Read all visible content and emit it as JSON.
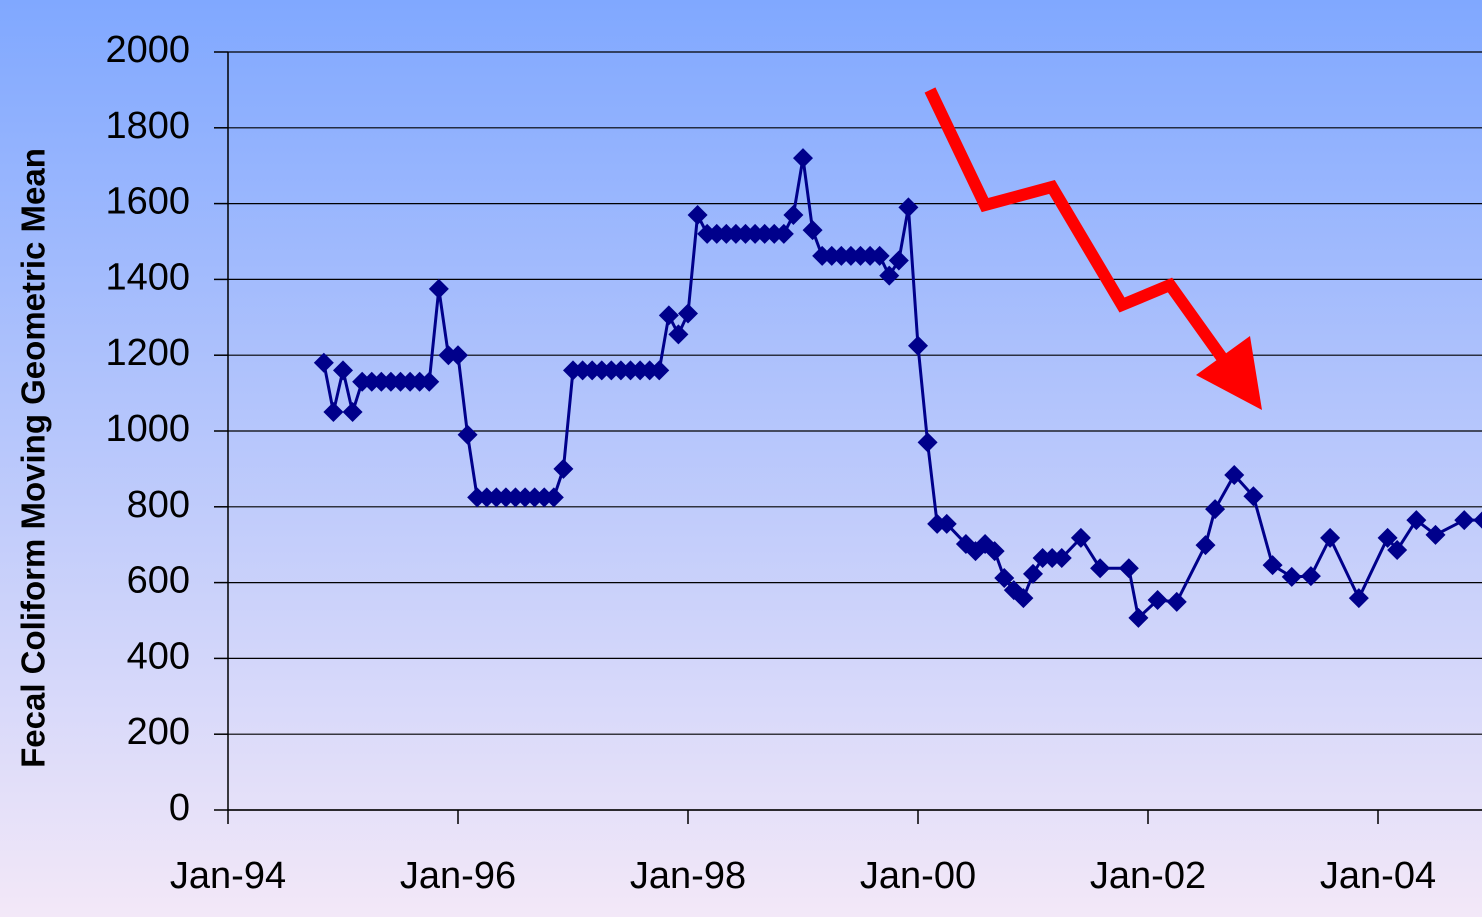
{
  "chart_data": {
    "type": "line",
    "ylabel": "Fecal Coliform Moving Geometric Mean",
    "xlim": [
      "1994-01",
      "2005-01"
    ],
    "xticks": [
      {
        "value": "1994-01",
        "label": "Jan-94"
      },
      {
        "value": "1996-01",
        "label": "Jan-96"
      },
      {
        "value": "1998-01",
        "label": "Jan-98"
      },
      {
        "value": "2000-01",
        "label": "Jan-00"
      },
      {
        "value": "2002-01",
        "label": "Jan-02"
      },
      {
        "value": "2004-01",
        "label": "Jan-04"
      }
    ],
    "ylim": [
      0,
      2000
    ],
    "yticks": [
      0,
      200,
      400,
      600,
      800,
      1000,
      1200,
      1400,
      1600,
      1800,
      2000
    ],
    "grid": true,
    "series": [
      {
        "color": "#00008b",
        "x": [
          "1994-11",
          "1994-12",
          "1995-01",
          "1995-02",
          "1995-03",
          "1995-04",
          "1995-05",
          "1995-06",
          "1995-07",
          "1995-08",
          "1995-09",
          "1995-10",
          "1995-11",
          "1995-12",
          "1996-01",
          "1996-02",
          "1996-03",
          "1996-04",
          "1996-05",
          "1996-06",
          "1996-07",
          "1996-08",
          "1996-09",
          "1996-10",
          "1996-11",
          "1996-12",
          "1997-01",
          "1997-02",
          "1997-03",
          "1997-04",
          "1997-05",
          "1997-06",
          "1997-07",
          "1997-08",
          "1997-09",
          "1997-10",
          "1997-11",
          "1997-12",
          "1998-01",
          "1998-02",
          "1998-03",
          "1998-04",
          "1998-05",
          "1998-06",
          "1998-07",
          "1998-08",
          "1998-09",
          "1998-10",
          "1998-11",
          "1998-12",
          "1999-01",
          "1999-02",
          "1999-03",
          "1999-04",
          "1999-05",
          "1999-06",
          "1999-07",
          "1999-08",
          "1999-09",
          "1999-10",
          "1999-11",
          "1999-12",
          "2000-01",
          "2000-02",
          "2000-03",
          "2000-04",
          "2000-06",
          "2000-07",
          "2000-08",
          "2000-09",
          "2000-10",
          "2000-11",
          "2000-12",
          "2001-01",
          "2001-02",
          "2001-03",
          "2001-04",
          "2001-06",
          "2001-08",
          "2001-11",
          "2001-12",
          "2002-02",
          "2002-04",
          "2002-07",
          "2002-08",
          "2002-10",
          "2002-12",
          "2003-02",
          "2003-04",
          "2003-06",
          "2003-08",
          "2003-11",
          "2004-02",
          "2004-03",
          "2004-05",
          "2004-07",
          "2004-10",
          "2004-12"
        ],
        "values": [
          1180,
          1050,
          1160,
          1050,
          1130,
          1130,
          1130,
          1130,
          1130,
          1130,
          1130,
          1130,
          1375,
          1200,
          1200,
          990,
          825,
          825,
          825,
          825,
          825,
          825,
          825,
          825,
          825,
          900,
          1160,
          1160,
          1160,
          1160,
          1160,
          1160,
          1160,
          1160,
          1160,
          1160,
          1305,
          1255,
          1310,
          1570,
          1520,
          1520,
          1520,
          1520,
          1520,
          1520,
          1520,
          1520,
          1520,
          1570,
          1720,
          1530,
          1462,
          1462,
          1462,
          1462,
          1462,
          1462,
          1462,
          1410,
          1450,
          1590,
          1225,
          970,
          755,
          755,
          702,
          683,
          702,
          683,
          612,
          580,
          559,
          623,
          665,
          665,
          665,
          718,
          638,
          638,
          507,
          554,
          549,
          699,
          794,
          884,
          828,
          646,
          615,
          617,
          718,
          559,
          718,
          686,
          765,
          726,
          765,
          765
        ]
      }
    ]
  }
}
